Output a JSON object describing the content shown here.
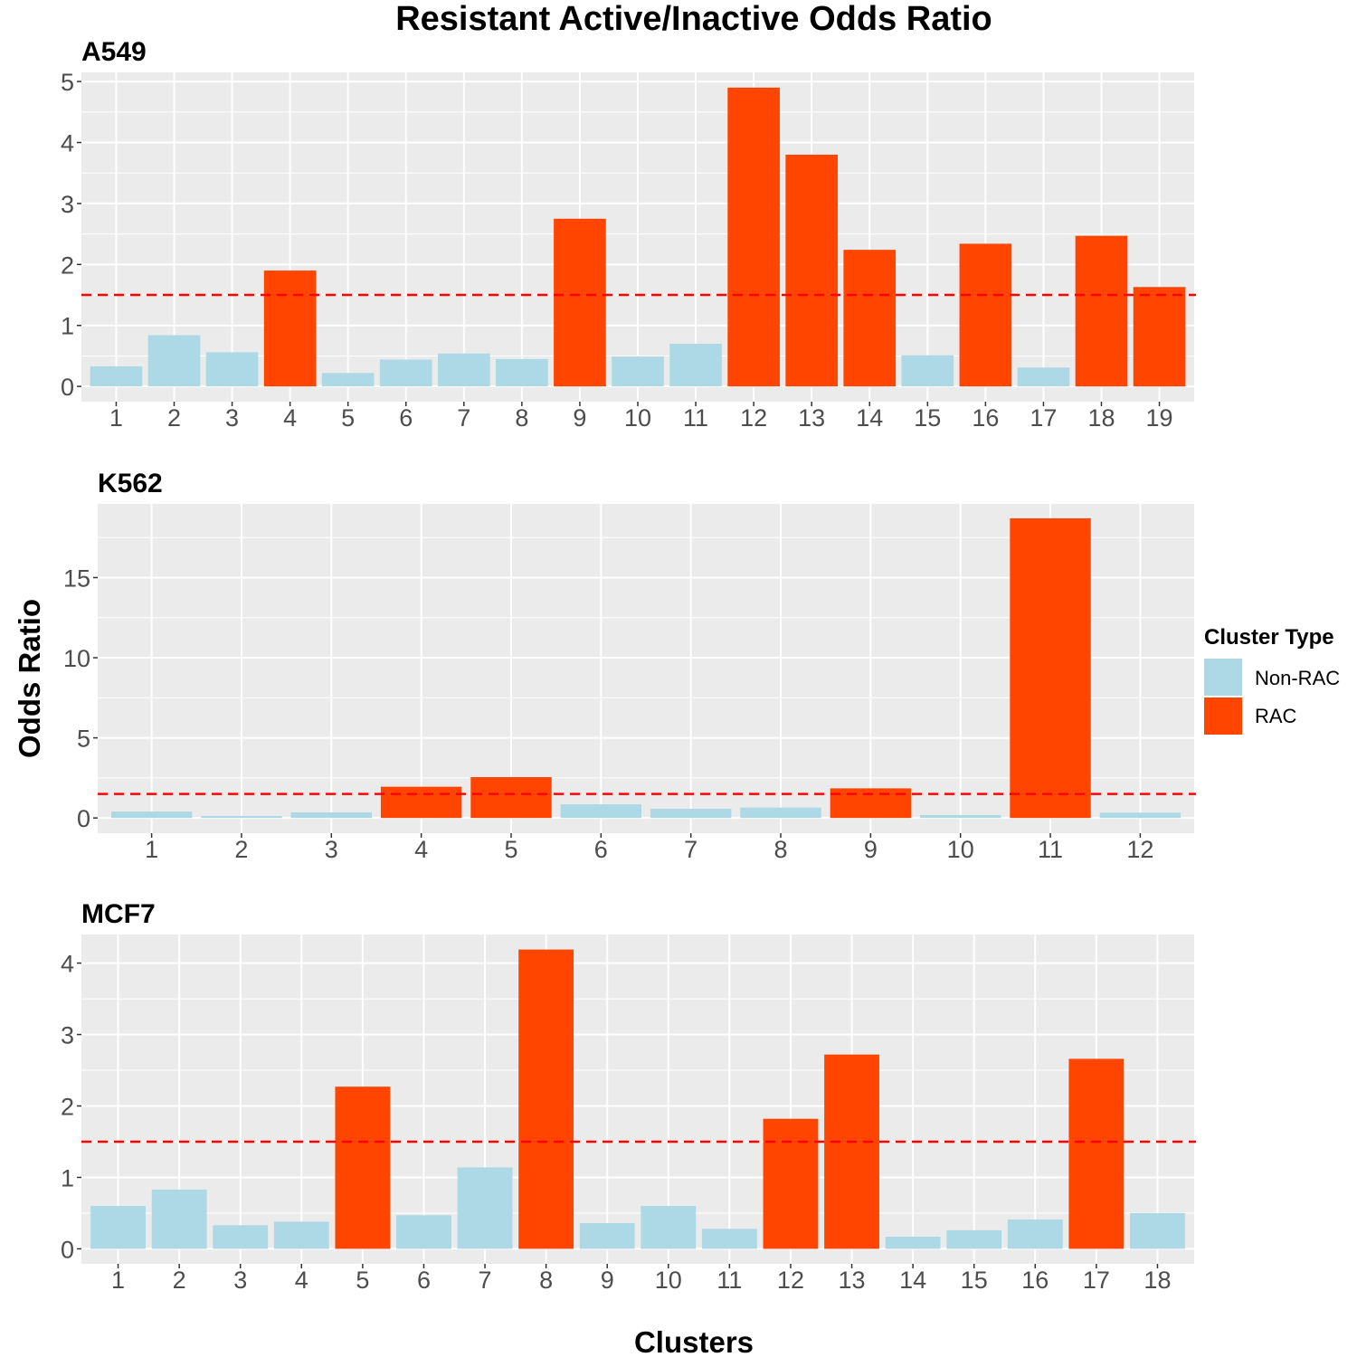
{
  "title": "Resistant Active/Inactive Odds Ratio",
  "xlabel": "Clusters",
  "ylabel": "Odds Ratio",
  "legend": {
    "title": "Cluster Type",
    "items": [
      {
        "label": "Non-RAC",
        "color": "#add8e6"
      },
      {
        "label": "RAC",
        "color": "#ff4500"
      }
    ]
  },
  "colors": {
    "Non-RAC": "#add8e6",
    "RAC": "#ff4500",
    "threshold_line": "#ff0000",
    "panel_background": "#ebebeb",
    "grid": "#ffffff"
  },
  "chart_data": [
    {
      "type": "bar",
      "title": "A549",
      "categories": [
        "1",
        "2",
        "3",
        "4",
        "5",
        "6",
        "7",
        "8",
        "9",
        "10",
        "11",
        "12",
        "13",
        "14",
        "15",
        "16",
        "17",
        "18",
        "19"
      ],
      "values": [
        0.33,
        0.84,
        0.56,
        1.9,
        0.22,
        0.44,
        0.54,
        0.45,
        2.75,
        0.49,
        0.7,
        4.9,
        3.8,
        2.24,
        0.51,
        2.34,
        0.31,
        2.47,
        1.63
      ],
      "cluster_type": [
        "Non-RAC",
        "Non-RAC",
        "Non-RAC",
        "RAC",
        "Non-RAC",
        "Non-RAC",
        "Non-RAC",
        "Non-RAC",
        "RAC",
        "Non-RAC",
        "Non-RAC",
        "RAC",
        "RAC",
        "RAC",
        "Non-RAC",
        "RAC",
        "Non-RAC",
        "RAC",
        "RAC"
      ],
      "yticks": [
        0,
        1,
        2,
        3,
        4,
        5
      ],
      "ylim": [
        -0.25,
        5.15
      ],
      "threshold": 1.5
    },
    {
      "type": "bar",
      "title": "K562",
      "categories": [
        "1",
        "2",
        "3",
        "4",
        "5",
        "6",
        "7",
        "8",
        "9",
        "10",
        "11",
        "12"
      ],
      "values": [
        0.4,
        0.12,
        0.35,
        1.95,
        2.55,
        0.85,
        0.57,
        0.65,
        1.85,
        0.18,
        18.7,
        0.33
      ],
      "cluster_type": [
        "Non-RAC",
        "Non-RAC",
        "Non-RAC",
        "RAC",
        "RAC",
        "Non-RAC",
        "Non-RAC",
        "Non-RAC",
        "RAC",
        "Non-RAC",
        "RAC",
        "Non-RAC"
      ],
      "yticks": [
        0,
        5,
        10,
        15
      ],
      "ylim": [
        -0.95,
        19.6
      ],
      "threshold": 1.5
    },
    {
      "type": "bar",
      "title": "MCF7",
      "categories": [
        "1",
        "2",
        "3",
        "4",
        "5",
        "6",
        "7",
        "8",
        "9",
        "10",
        "11",
        "12",
        "13",
        "14",
        "15",
        "16",
        "17",
        "18"
      ],
      "values": [
        0.6,
        0.83,
        0.33,
        0.38,
        2.27,
        0.47,
        1.14,
        4.19,
        0.36,
        0.6,
        0.28,
        1.82,
        2.72,
        0.17,
        0.26,
        0.41,
        2.66,
        0.5
      ],
      "cluster_type": [
        "Non-RAC",
        "Non-RAC",
        "Non-RAC",
        "Non-RAC",
        "RAC",
        "Non-RAC",
        "Non-RAC",
        "RAC",
        "Non-RAC",
        "Non-RAC",
        "Non-RAC",
        "RAC",
        "RAC",
        "Non-RAC",
        "Non-RAC",
        "Non-RAC",
        "RAC",
        "Non-RAC"
      ],
      "yticks": [
        0,
        1,
        2,
        3,
        4
      ],
      "ylim": [
        -0.21,
        4.4
      ],
      "threshold": 1.5
    }
  ]
}
